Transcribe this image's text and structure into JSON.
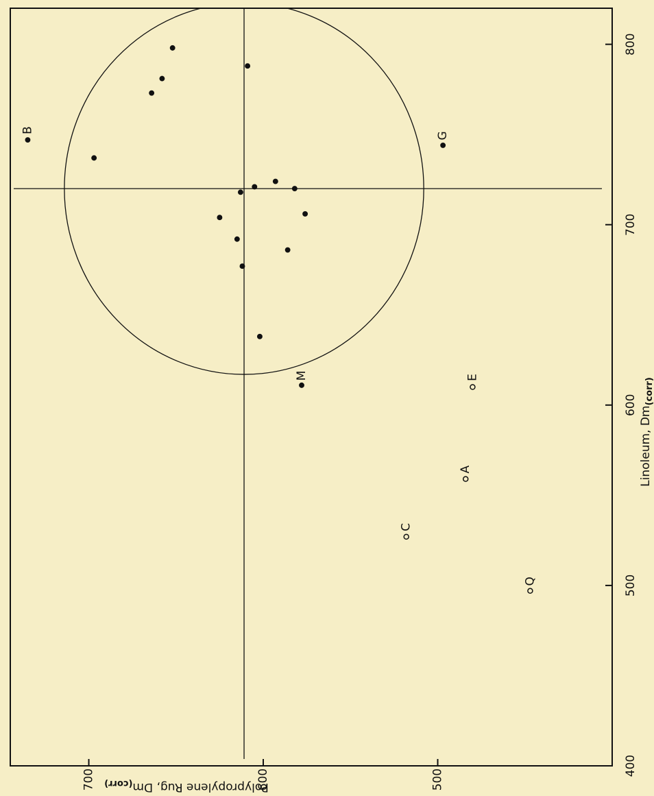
{
  "chart_data": {
    "type": "scatter",
    "x_label": {
      "text": "Linoleum, Dm",
      "sub": "(corr)"
    },
    "y_label": {
      "text": "Polypropylene Rug, Dm",
      "sub": "(corr)"
    },
    "xlim": [
      400,
      820
    ],
    "xticks": [
      400,
      500,
      600,
      700,
      800
    ],
    "ylim": [
      400,
      745
    ],
    "yticks": [
      500,
      600,
      700
    ],
    "reference": {
      "x_mean": 720,
      "y_mean": 611,
      "radius": 103
    },
    "series": [
      {
        "marker": "filled",
        "x": [
          798,
          781,
          773,
          788,
          747,
          737,
          744,
          721,
          724,
          720,
          718,
          704,
          706,
          692,
          686,
          677,
          638,
          611
        ],
        "values": [
          652,
          658,
          664,
          609,
          735,
          697,
          497,
          605,
          593,
          582,
          613,
          625,
          576,
          615,
          586,
          612,
          602,
          578
        ],
        "labels": [
          null,
          null,
          null,
          null,
          "B",
          null,
          "G",
          null,
          null,
          null,
          null,
          null,
          null,
          null,
          null,
          null,
          null,
          "M"
        ]
      },
      {
        "marker": "open",
        "x": [
          610,
          559,
          527,
          497
        ],
        "values": [
          480,
          484,
          518,
          447
        ],
        "labels": [
          "E",
          "A",
          "C",
          "Q"
        ]
      }
    ]
  }
}
